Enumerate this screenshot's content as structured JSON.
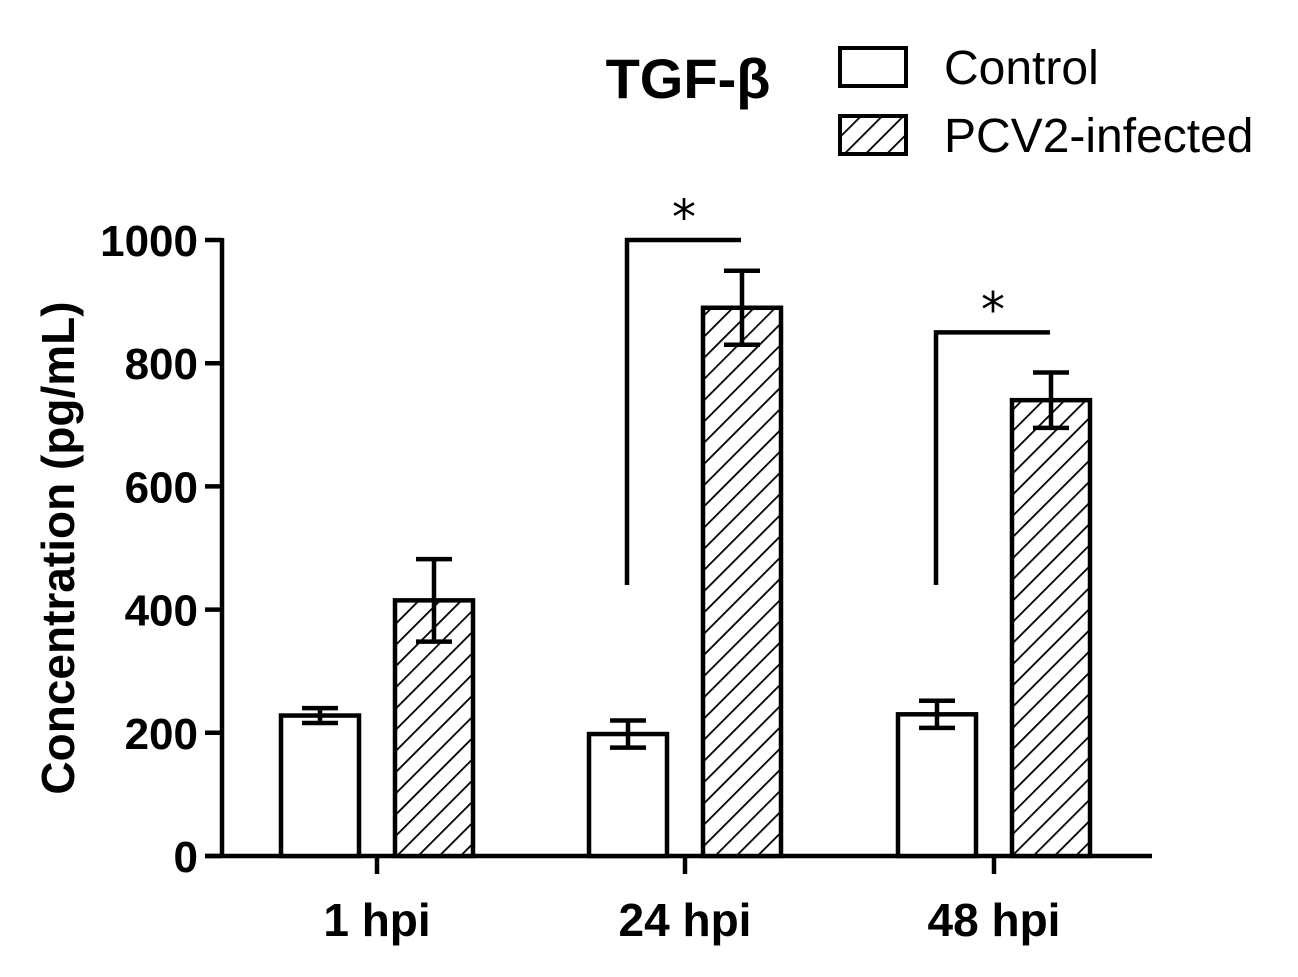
{
  "chart_data": {
    "type": "bar",
    "title": "TGF-β",
    "xlabel": "",
    "ylabel": "Concentration (pg/mL)",
    "ylim": [
      0,
      1000
    ],
    "yticks": [
      0,
      200,
      400,
      600,
      800,
      1000
    ],
    "ytick_labels": [
      "0",
      "200",
      "400",
      "600",
      "800",
      "1000"
    ],
    "categories": [
      "1 hpi",
      "24 hpi",
      "48 hpi"
    ],
    "series": [
      {
        "name": "Control",
        "fill": "white",
        "values": [
          228,
          198,
          230
        ],
        "errors": [
          12,
          22,
          22
        ]
      },
      {
        "name": "PCV2-infected",
        "fill": "hatched",
        "values": [
          415,
          890,
          740
        ],
        "errors": [
          67,
          60,
          45
        ]
      }
    ],
    "significance": [
      {
        "category_index": 1,
        "label": "*",
        "y": 1000,
        "left_bottom": 440
      },
      {
        "category_index": 2,
        "label": "*",
        "y": 850,
        "left_bottom": 440
      }
    ],
    "legend_position": "top-right",
    "grid": false
  },
  "colors": {
    "axis": "#000000",
    "bar_edge": "#000000",
    "background": "#ffffff"
  }
}
